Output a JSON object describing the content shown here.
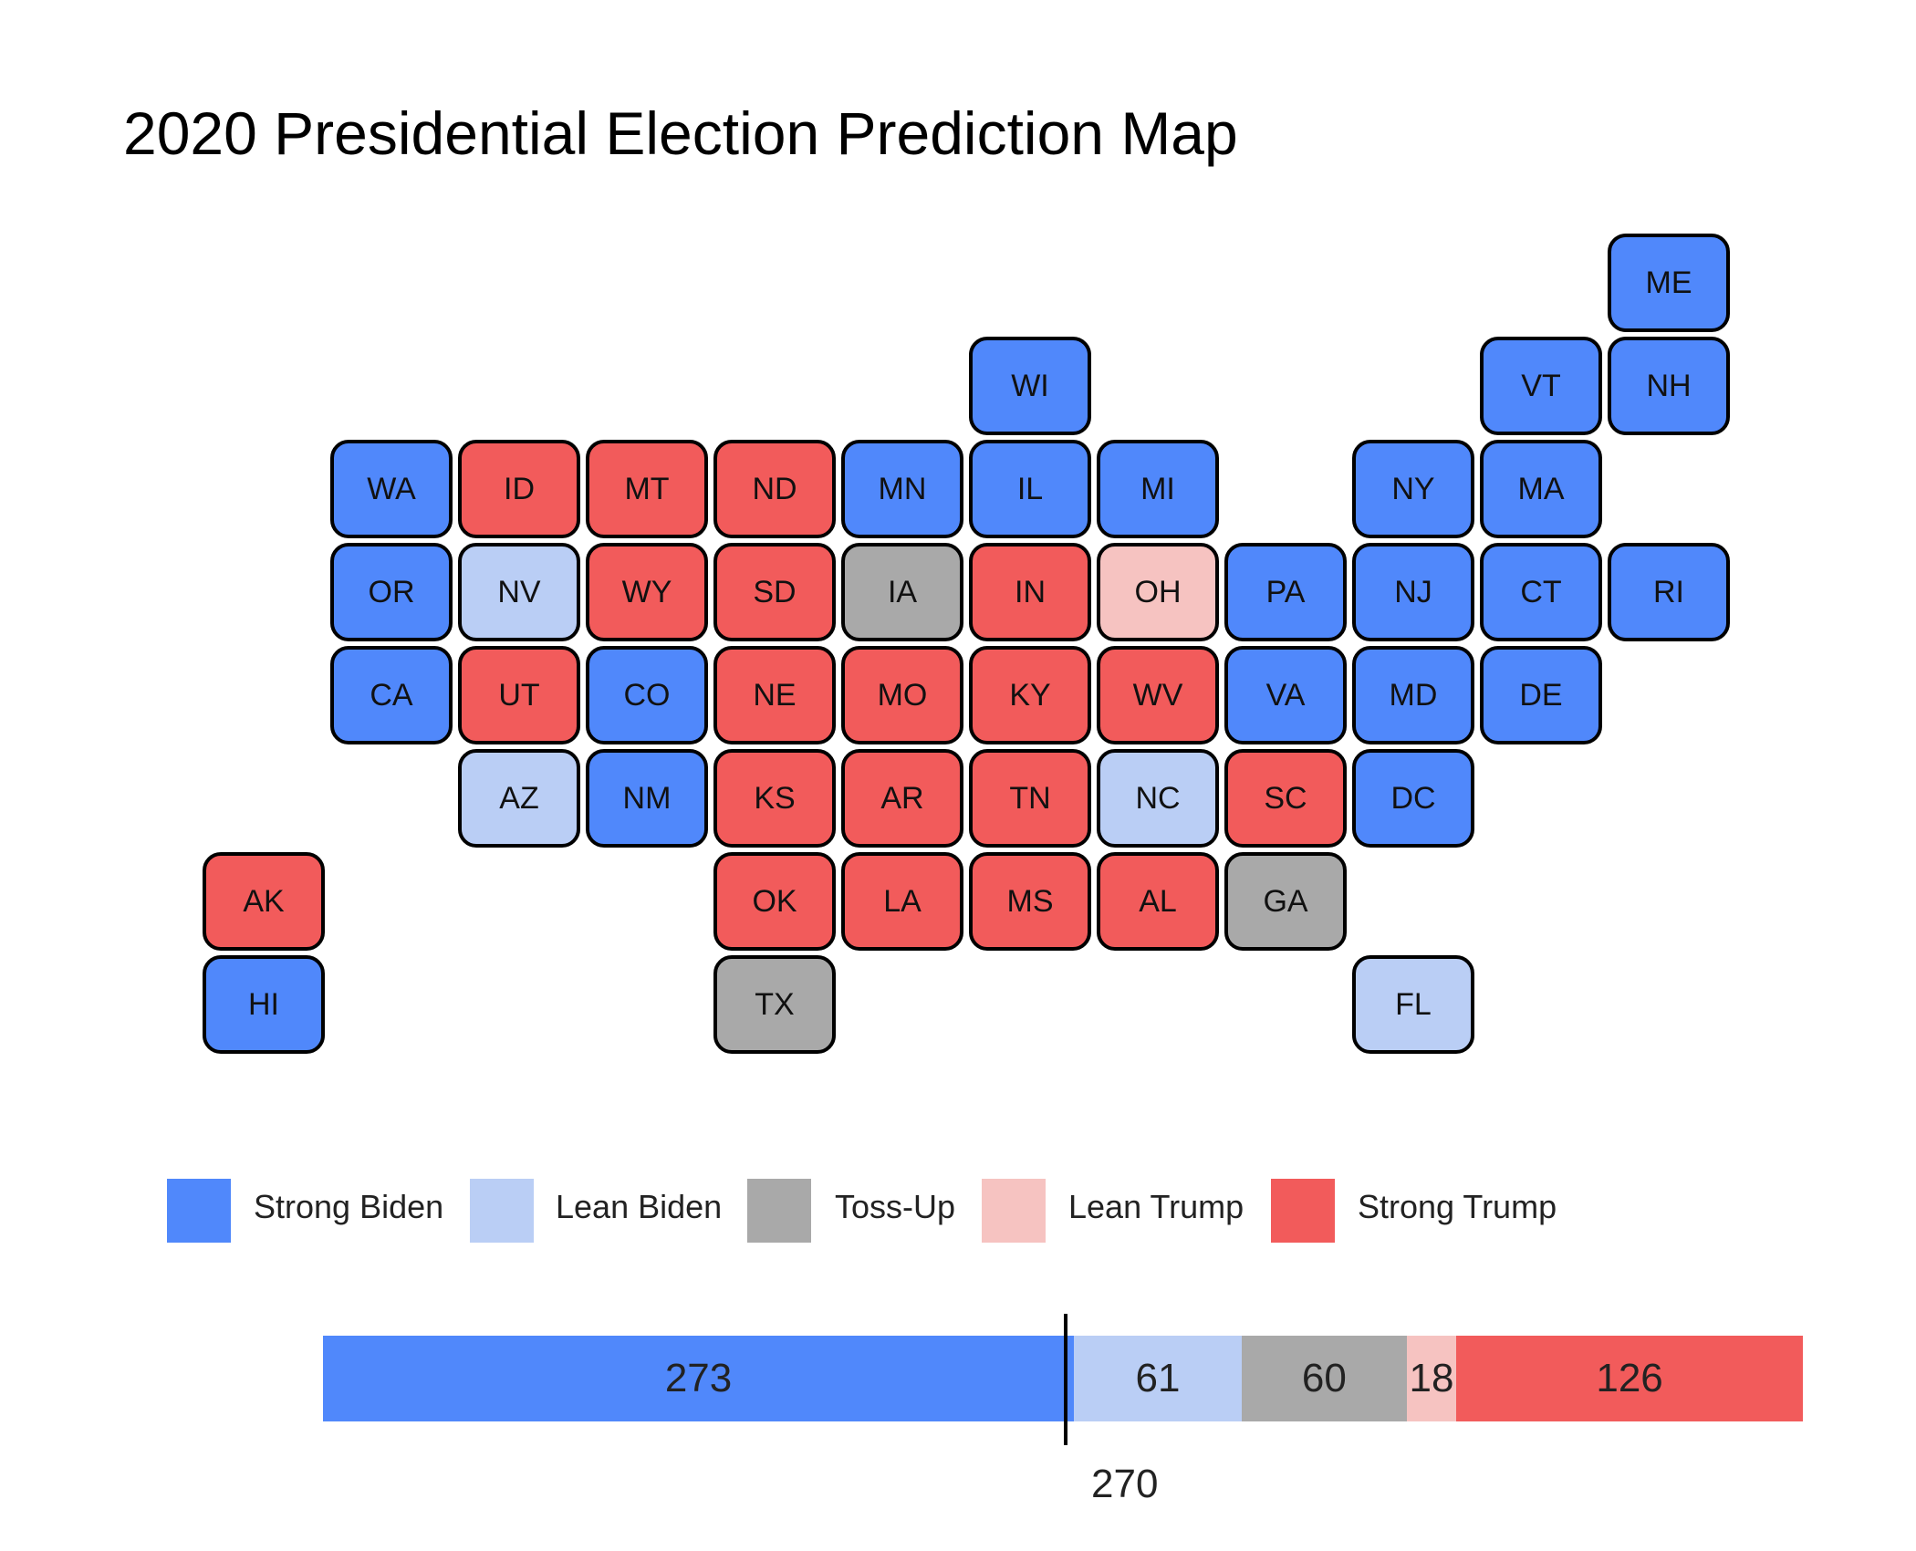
{
  "title": "2020 Presidential Election Prediction Map",
  "colors": {
    "strong_biden": "#5088fb",
    "lean_biden": "#bacef5",
    "toss_up": "#a9a9a9",
    "lean_trump": "#f6c3c1",
    "strong_trump": "#f25b5b"
  },
  "legend": [
    {
      "key": "strong_biden",
      "label": "Strong Biden"
    },
    {
      "key": "lean_biden",
      "label": "Lean Biden"
    },
    {
      "key": "toss_up",
      "label": "Toss-Up"
    },
    {
      "key": "lean_trump",
      "label": "Lean Trump"
    },
    {
      "key": "strong_trump",
      "label": "Strong Trump"
    }
  ],
  "states": [
    {
      "abbr": "ME",
      "col": 11,
      "row": 0,
      "rating": "strong_biden"
    },
    {
      "abbr": "WI",
      "col": 6,
      "row": 1,
      "rating": "strong_biden"
    },
    {
      "abbr": "VT",
      "col": 10,
      "row": 1,
      "rating": "strong_biden"
    },
    {
      "abbr": "NH",
      "col": 11,
      "row": 1,
      "rating": "strong_biden"
    },
    {
      "abbr": "WA",
      "col": 1,
      "row": 2,
      "rating": "strong_biden"
    },
    {
      "abbr": "ID",
      "col": 2,
      "row": 2,
      "rating": "strong_trump"
    },
    {
      "abbr": "MT",
      "col": 3,
      "row": 2,
      "rating": "strong_trump"
    },
    {
      "abbr": "ND",
      "col": 4,
      "row": 2,
      "rating": "strong_trump"
    },
    {
      "abbr": "MN",
      "col": 5,
      "row": 2,
      "rating": "strong_biden"
    },
    {
      "abbr": "IL",
      "col": 6,
      "row": 2,
      "rating": "strong_biden"
    },
    {
      "abbr": "MI",
      "col": 7,
      "row": 2,
      "rating": "strong_biden"
    },
    {
      "abbr": "NY",
      "col": 9,
      "row": 2,
      "rating": "strong_biden"
    },
    {
      "abbr": "MA",
      "col": 10,
      "row": 2,
      "rating": "strong_biden"
    },
    {
      "abbr": "OR",
      "col": 1,
      "row": 3,
      "rating": "strong_biden"
    },
    {
      "abbr": "NV",
      "col": 2,
      "row": 3,
      "rating": "lean_biden"
    },
    {
      "abbr": "WY",
      "col": 3,
      "row": 3,
      "rating": "strong_trump"
    },
    {
      "abbr": "SD",
      "col": 4,
      "row": 3,
      "rating": "strong_trump"
    },
    {
      "abbr": "IA",
      "col": 5,
      "row": 3,
      "rating": "toss_up"
    },
    {
      "abbr": "IN",
      "col": 6,
      "row": 3,
      "rating": "strong_trump"
    },
    {
      "abbr": "OH",
      "col": 7,
      "row": 3,
      "rating": "lean_trump"
    },
    {
      "abbr": "PA",
      "col": 8,
      "row": 3,
      "rating": "strong_biden"
    },
    {
      "abbr": "NJ",
      "col": 9,
      "row": 3,
      "rating": "strong_biden"
    },
    {
      "abbr": "CT",
      "col": 10,
      "row": 3,
      "rating": "strong_biden"
    },
    {
      "abbr": "RI",
      "col": 11,
      "row": 3,
      "rating": "strong_biden"
    },
    {
      "abbr": "CA",
      "col": 1,
      "row": 4,
      "rating": "strong_biden"
    },
    {
      "abbr": "UT",
      "col": 2,
      "row": 4,
      "rating": "strong_trump"
    },
    {
      "abbr": "CO",
      "col": 3,
      "row": 4,
      "rating": "strong_biden"
    },
    {
      "abbr": "NE",
      "col": 4,
      "row": 4,
      "rating": "strong_trump"
    },
    {
      "abbr": "MO",
      "col": 5,
      "row": 4,
      "rating": "strong_trump"
    },
    {
      "abbr": "KY",
      "col": 6,
      "row": 4,
      "rating": "strong_trump"
    },
    {
      "abbr": "WV",
      "col": 7,
      "row": 4,
      "rating": "strong_trump"
    },
    {
      "abbr": "VA",
      "col": 8,
      "row": 4,
      "rating": "strong_biden"
    },
    {
      "abbr": "MD",
      "col": 9,
      "row": 4,
      "rating": "strong_biden"
    },
    {
      "abbr": "DE",
      "col": 10,
      "row": 4,
      "rating": "strong_biden"
    },
    {
      "abbr": "AZ",
      "col": 2,
      "row": 5,
      "rating": "lean_biden"
    },
    {
      "abbr": "NM",
      "col": 3,
      "row": 5,
      "rating": "strong_biden"
    },
    {
      "abbr": "KS",
      "col": 4,
      "row": 5,
      "rating": "strong_trump"
    },
    {
      "abbr": "AR",
      "col": 5,
      "row": 5,
      "rating": "strong_trump"
    },
    {
      "abbr": "TN",
      "col": 6,
      "row": 5,
      "rating": "strong_trump"
    },
    {
      "abbr": "NC",
      "col": 7,
      "row": 5,
      "rating": "lean_biden"
    },
    {
      "abbr": "SC",
      "col": 8,
      "row": 5,
      "rating": "strong_trump"
    },
    {
      "abbr": "DC",
      "col": 9,
      "row": 5,
      "rating": "strong_biden"
    },
    {
      "abbr": "AK",
      "col": 0,
      "row": 6,
      "rating": "strong_trump"
    },
    {
      "abbr": "OK",
      "col": 4,
      "row": 6,
      "rating": "strong_trump"
    },
    {
      "abbr": "LA",
      "col": 5,
      "row": 6,
      "rating": "strong_trump"
    },
    {
      "abbr": "MS",
      "col": 6,
      "row": 6,
      "rating": "strong_trump"
    },
    {
      "abbr": "AL",
      "col": 7,
      "row": 6,
      "rating": "strong_trump"
    },
    {
      "abbr": "GA",
      "col": 8,
      "row": 6,
      "rating": "toss_up"
    },
    {
      "abbr": "HI",
      "col": 0,
      "row": 7,
      "rating": "strong_biden"
    },
    {
      "abbr": "TX",
      "col": 4,
      "row": 7,
      "rating": "toss_up"
    },
    {
      "abbr": "FL",
      "col": 9,
      "row": 7,
      "rating": "lean_biden"
    }
  ],
  "electoral_tally": [
    {
      "key": "strong_biden",
      "votes": 273
    },
    {
      "key": "lean_biden",
      "votes": 61
    },
    {
      "key": "toss_up",
      "votes": 60
    },
    {
      "key": "lean_trump",
      "votes": 18
    },
    {
      "key": "strong_trump",
      "votes": 126
    }
  ],
  "threshold": 270,
  "threshold_label": "270"
}
